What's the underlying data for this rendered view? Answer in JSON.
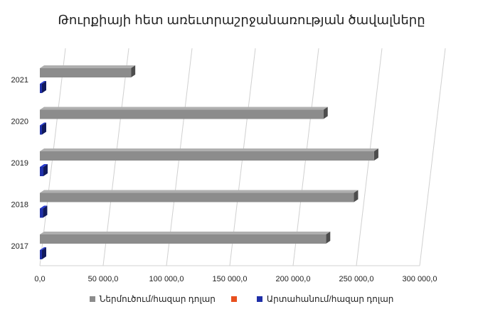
{
  "chart_data": {
    "type": "bar",
    "orientation": "horizontal",
    "style": "3d",
    "title": "Թուրքիայի  հետ առեւտրաշրջանառության ծավալները",
    "categories": [
      "2017",
      "2018",
      "2019",
      "2020",
      "2021"
    ],
    "series": [
      {
        "name": "Ներմուծում/հազար դոլար",
        "color": "#8c8c8c",
        "values": [
          226000,
          248000,
          264000,
          224000,
          72000
        ]
      },
      {
        "name": "",
        "color": "#e8501e",
        "values": [
          0,
          0,
          0,
          0,
          0
        ]
      },
      {
        "name": "Արտահանում/հազար դոլար",
        "color": "#1f2fa8",
        "values": [
          1500,
          2500,
          2800,
          800,
          800
        ]
      }
    ],
    "x_ticks": [
      "0,0",
      "50 000,0",
      "100 000,0",
      "150 000,0",
      "200 000,0",
      "250 000,0",
      "300 000,0"
    ],
    "xlim": [
      0,
      300000
    ],
    "grid": true,
    "legend_position": "bottom"
  }
}
